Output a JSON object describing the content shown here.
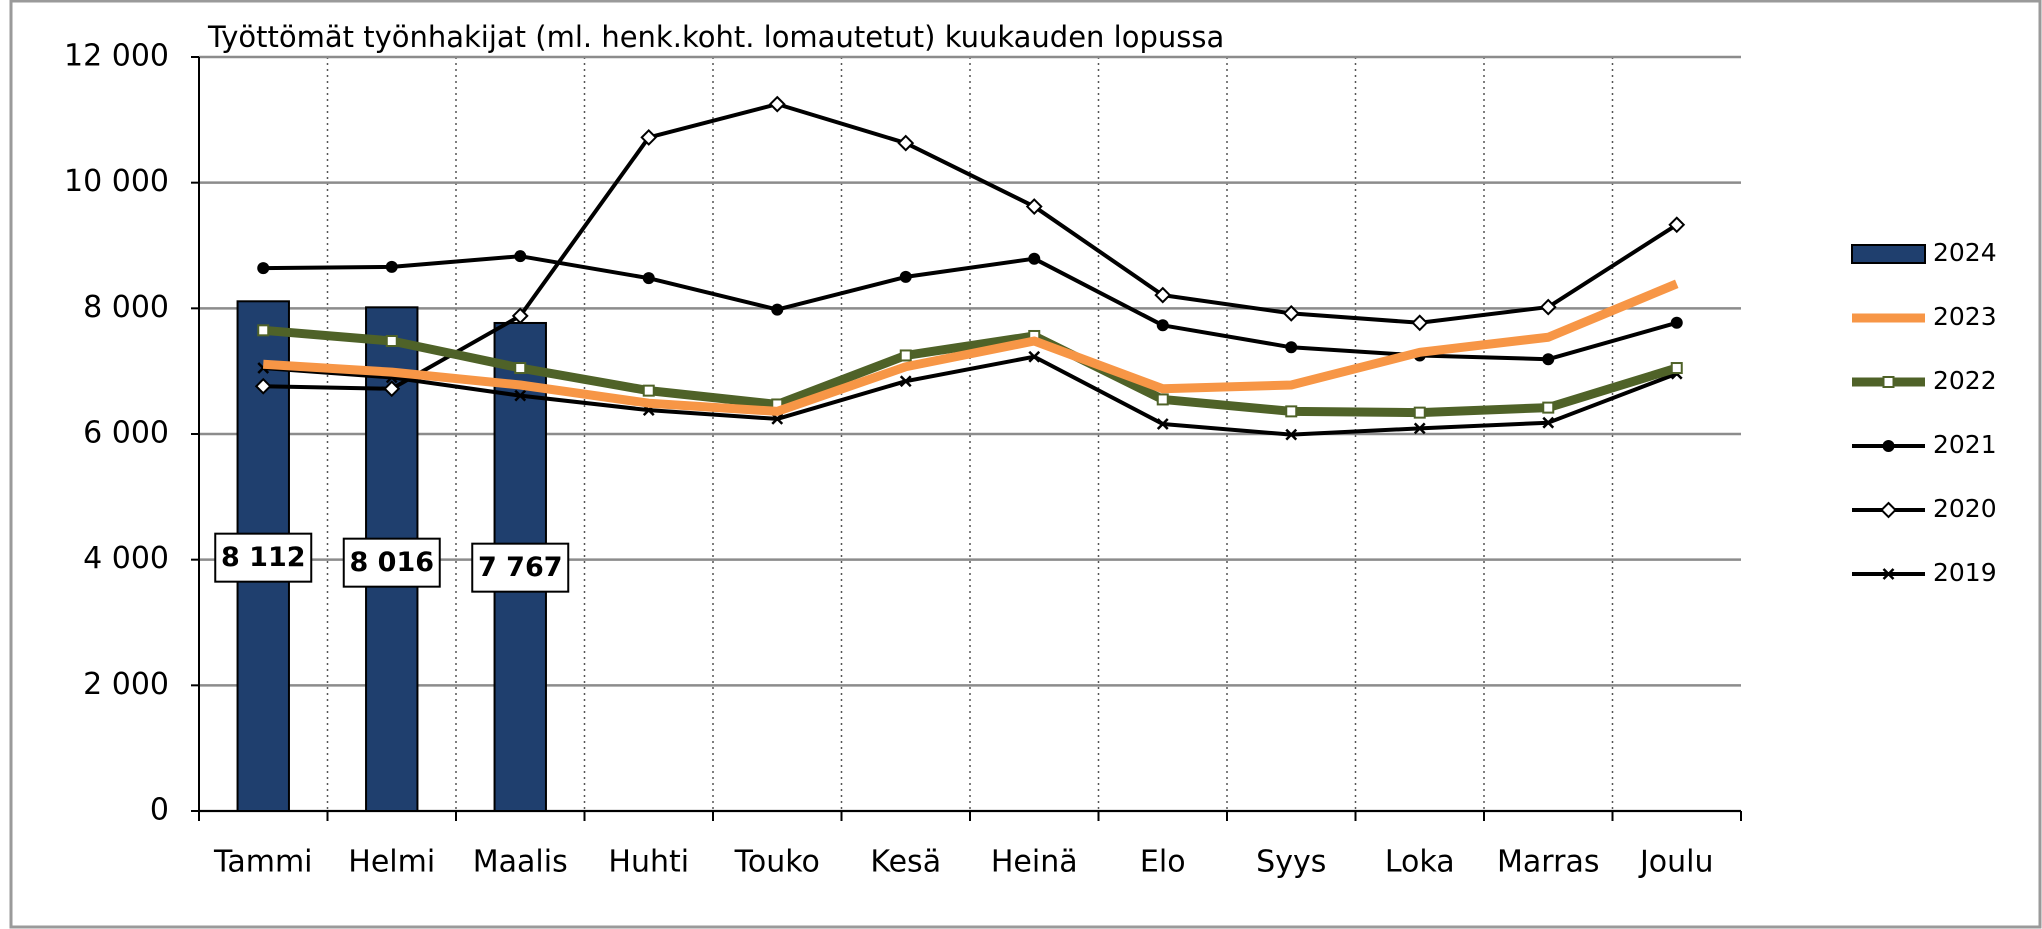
{
  "chart_data": {
    "type": "combo",
    "title": "Työttömät työnhakijat (ml. henk.koht. lomautetut) kuukauden lopussa",
    "categories": [
      "Tammi",
      "Helmi",
      "Maalis",
      "Huhti",
      "Touko",
      "Kesä",
      "Heinä",
      "Elo",
      "Syys",
      "Loka",
      "Marras",
      "Joulu"
    ],
    "ylim": [
      0,
      12000
    ],
    "yticks": [
      0,
      {
        "value": 2000,
        "label": "2 000"
      },
      {
        "value": 4000,
        "label": "4 000"
      },
      {
        "value": 6000,
        "label": "6 000"
      },
      {
        "value": 8000,
        "label": "8 000"
      },
      {
        "value": 10000,
        "label": "10 000"
      },
      {
        "value": 12000,
        "label": "12 000"
      }
    ],
    "grid": true,
    "legend": "right",
    "series": [
      {
        "name": "2024",
        "type": "bar",
        "color": "#1f3f6e",
        "values": [
          8112,
          8016,
          7767,
          null,
          null,
          null,
          null,
          null,
          null,
          null,
          null,
          null
        ],
        "value_labels": [
          "8 112",
          "8 016",
          "7 767",
          null,
          null,
          null,
          null,
          null,
          null,
          null,
          null,
          null
        ]
      },
      {
        "name": "2023",
        "type": "line",
        "color": "#f79646",
        "line_width": 9,
        "marker": "none",
        "values": [
          7110,
          6985,
          6780,
          6490,
          6360,
          7070,
          7480,
          6720,
          6780,
          7300,
          7540,
          8390
        ]
      },
      {
        "name": "2022",
        "type": "line",
        "color": "#4f6228",
        "line_width": 9,
        "marker": "square",
        "values": [
          7650,
          7480,
          7050,
          6690,
          6470,
          7250,
          7560,
          6550,
          6360,
          6340,
          6420,
          7050
        ]
      },
      {
        "name": "2021",
        "type": "line",
        "color": "#000000",
        "line_width": 4,
        "marker": "circle",
        "values": [
          8640,
          8660,
          8830,
          8480,
          7980,
          8500,
          8790,
          7730,
          7380,
          7250,
          7190,
          7770
        ]
      },
      {
        "name": "2020",
        "type": "line",
        "color": "#000000",
        "line_width": 4,
        "marker": "diamond",
        "values": [
          6760,
          6720,
          7880,
          10720,
          11250,
          10630,
          9620,
          8210,
          7920,
          7770,
          8020,
          9330
        ]
      },
      {
        "name": "2019",
        "type": "line",
        "color": "#000000",
        "line_width": 4,
        "marker": "x",
        "values": [
          7050,
          6900,
          6610,
          6380,
          6240,
          6840,
          7230,
          6160,
          5990,
          6090,
          6180,
          6960
        ]
      }
    ]
  }
}
